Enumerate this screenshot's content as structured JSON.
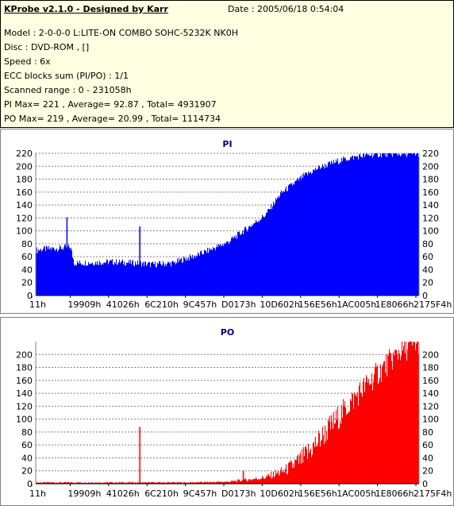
{
  "header": {
    "title": "KProbe v2.1.0 - Designed by Karr",
    "date": "Date : 2005/06/18 0:54:04",
    "lines": [
      "Model : 2-0-0-0 L:LITE-ON COMBO SOHC-5232K NK0H",
      "Disc : DVD-ROM ,  []",
      "Speed : 6x",
      "ECC blocks sum (PI/PO) : 1/1",
      "Scanned range : 0 - 231058h",
      "PI Max= 221 , Average= 92.87 , Total= 4931907",
      "PO Max= 219 , Average= 20.99 , Total= 1114734"
    ]
  },
  "chart_data": [
    {
      "type": "area",
      "title": "PI",
      "color": "#0000ff",
      "ylim": [
        0,
        220
      ],
      "yticks": [
        0,
        20,
        40,
        60,
        80,
        100,
        120,
        140,
        160,
        180,
        200,
        220
      ],
      "xticks": [
        "11h",
        "19909h",
        "41026h",
        "6C210h",
        "9C457h",
        "D0173h",
        "10D602h",
        "156E56h",
        "1AC005h",
        "1E8066h",
        "2175F4h"
      ],
      "grid": true,
      "x_fraction": [
        0,
        0.02,
        0.06,
        0.09,
        0.1,
        0.2,
        0.27,
        0.3,
        0.36,
        0.38,
        0.42,
        0.5,
        0.55,
        0.6,
        0.64,
        0.7,
        0.74,
        0.8,
        0.84,
        0.88,
        0.95,
        1
      ],
      "values": [
        70,
        72,
        73,
        75,
        50,
        52,
        50,
        48,
        50,
        55,
        62,
        82,
        103,
        125,
        158,
        185,
        198,
        210,
        215,
        218,
        219,
        219
      ],
      "spikes": [
        {
          "x_fraction": 0.08,
          "value": 121
        },
        {
          "x_fraction": 0.27,
          "value": 107
        }
      ]
    },
    {
      "type": "area",
      "title": "PO",
      "color": "#ff0000",
      "ylim": [
        0,
        220
      ],
      "yticks": [
        0,
        20,
        40,
        60,
        80,
        100,
        120,
        140,
        160,
        180,
        200
      ],
      "xticks": [
        "11h",
        "19909h",
        "41026h",
        "6C210h",
        "9C457h",
        "D0173h",
        "10D602h",
        "156E56h",
        "1AC005h",
        "1E8066h",
        "2175F4h"
      ],
      "grid": true,
      "x_fraction": [
        0,
        0.1,
        0.2,
        0.3,
        0.4,
        0.5,
        0.55,
        0.6,
        0.65,
        0.7,
        0.75,
        0.8,
        0.85,
        0.9,
        0.95,
        1
      ],
      "values": [
        2,
        2,
        2,
        2,
        2,
        3,
        6,
        10,
        20,
        40,
        75,
        110,
        145,
        175,
        205,
        219
      ],
      "spikes": [
        {
          "x_fraction": 0.27,
          "value": 88
        },
        {
          "x_fraction": 0.54,
          "value": 20
        }
      ]
    }
  ]
}
